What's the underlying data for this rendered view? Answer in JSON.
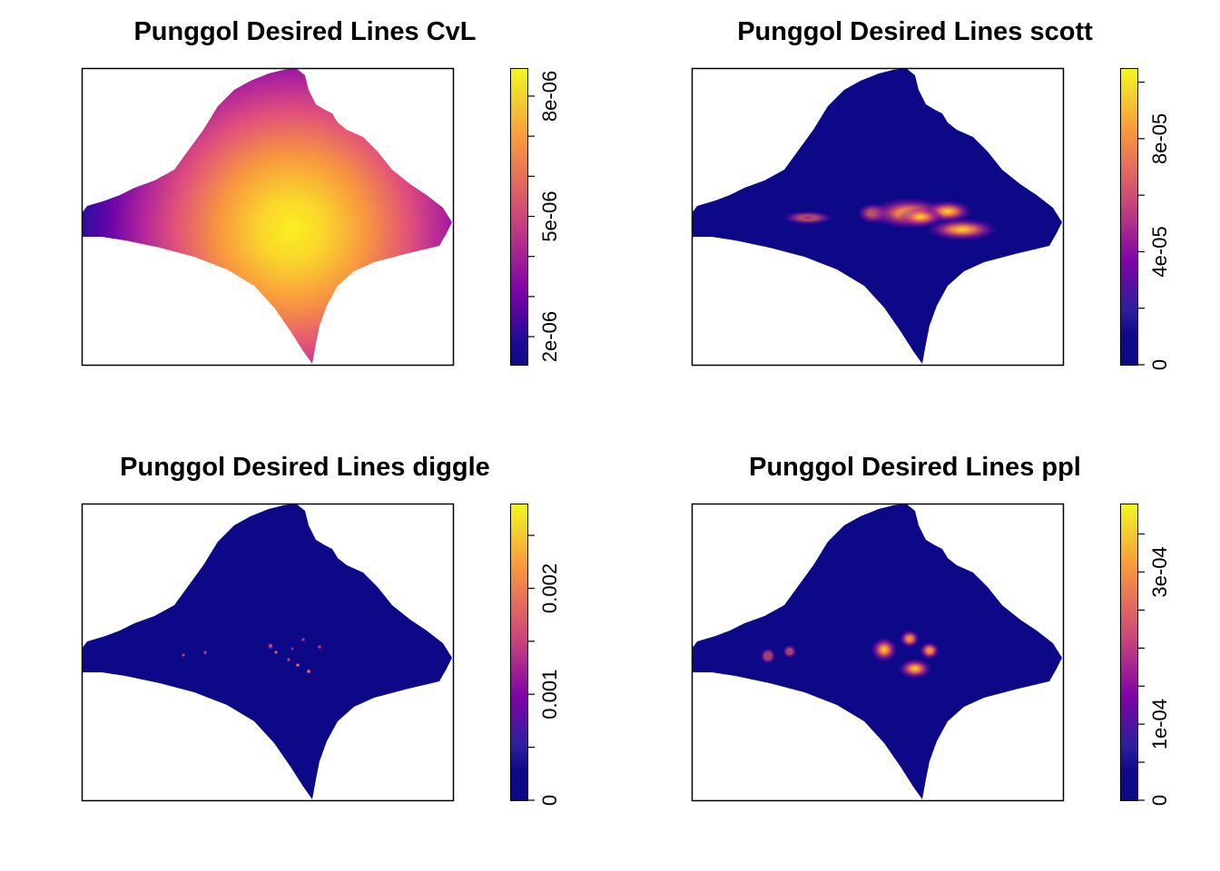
{
  "chart_data": [
    {
      "type": "heatmap",
      "title": "Punggol Desired Lines CvL",
      "colorscale": [
        "#0D0887",
        "#7E03A8",
        "#CC4778",
        "#F89540",
        "#F0F921"
      ],
      "legend": {
        "ticks": [
          2e-06,
          3e-06,
          4e-06,
          5e-06,
          6e-06,
          7e-06,
          8e-06
        ],
        "tick_labels": [
          "2e-06",
          "",
          "",
          "5e-06",
          "",
          "",
          "8e-06"
        ],
        "range": [
          1.3e-06,
          8.7e-06
        ]
      },
      "field": {
        "kind": "single_broad",
        "peak": 8.7e-06
      }
    },
    {
      "type": "heatmap",
      "title": "Punggol Desired Lines scott",
      "colorscale": [
        "#0D0887",
        "#7E03A8",
        "#CC4778",
        "#F89540",
        "#F0F921"
      ],
      "legend": {
        "ticks": [
          0,
          2e-05,
          4e-05,
          6e-05,
          8e-05,
          0.0001
        ],
        "tick_labels": [
          "0",
          "",
          "4e-05",
          "",
          "8e-05",
          ""
        ],
        "range": [
          0,
          0.000105
        ]
      },
      "field": {
        "kind": "clusters",
        "peak": 0.0001
      }
    },
    {
      "type": "heatmap",
      "title": "Punggol Desired Lines diggle",
      "colorscale": [
        "#0D0887",
        "#7E03A8",
        "#CC4778",
        "#F89540",
        "#F0F921"
      ],
      "legend": {
        "ticks": [
          0,
          0.0005,
          0.001,
          0.0015,
          0.002,
          0.0025
        ],
        "tick_labels": [
          "0",
          "",
          "0.001",
          "",
          "0.002",
          ""
        ],
        "range": [
          0,
          0.0028
        ]
      },
      "field": {
        "kind": "sparse_points",
        "peak": 0.0026
      }
    },
    {
      "type": "heatmap",
      "title": "Punggol Desired Lines ppl",
      "colorscale": [
        "#0D0887",
        "#7E03A8",
        "#CC4778",
        "#F89540",
        "#F0F921"
      ],
      "legend": {
        "ticks": [
          0,
          5e-05,
          0.0001,
          0.00015,
          0.0002,
          0.00025,
          0.0003,
          0.00035
        ],
        "tick_labels": [
          "0",
          "",
          "1e-04",
          "",
          "",
          "",
          "3e-04",
          ""
        ],
        "range": [
          0,
          0.00039
        ]
      },
      "field": {
        "kind": "tight_clusters",
        "peak": 0.00038
      }
    }
  ]
}
